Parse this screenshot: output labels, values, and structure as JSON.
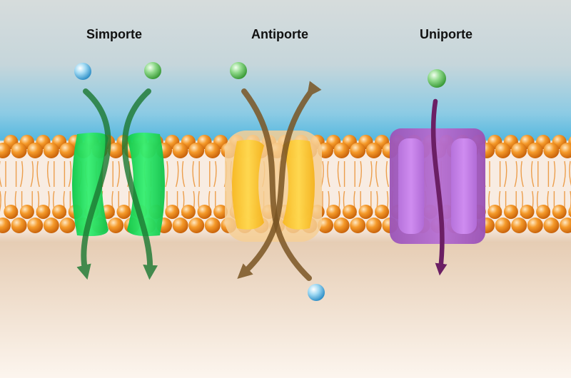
{
  "labels": {
    "symport": "Simporte",
    "antiport": "Antiporte",
    "uniport": "Uniporte"
  },
  "colors": {
    "outside_top": "#cdd7d8",
    "outside_bottom": "#5fb9de",
    "inside_top": "#e2cbb3",
    "inside_bottom": "#fbf3ea",
    "head": "#f2921f",
    "tail": "#e57d12",
    "symport_protein": "#1ee05c",
    "symport_arrow": "#1e7a34",
    "antiport_protein": "#f4c12e",
    "antiport_arrow": "#7a5523",
    "uniport_protein": "#b267cf",
    "uniport_arrow": "#6b1f64",
    "ion_blue": "#5cb6e4",
    "ion_green": "#5cc35a"
  }
}
